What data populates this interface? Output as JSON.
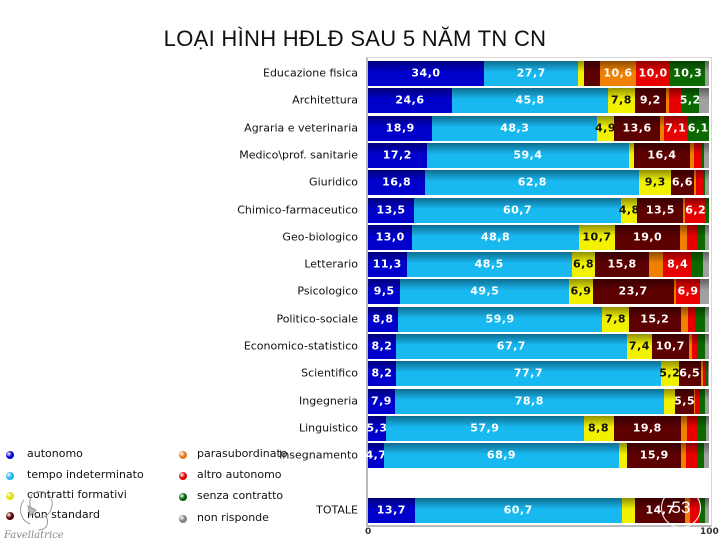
{
  "title": "LOẠI HÌNH HĐLĐ SAU 5 NĂM TN CN",
  "page_number": "53",
  "logo_text": "Favellatrice",
  "chart_data": {
    "type": "bar",
    "orientation": "horizontal",
    "stacked": true,
    "title": "",
    "xlim": [
      0,
      100
    ],
    "x_ticks": [
      "0",
      "100"
    ],
    "grid": false,
    "legend_position": "bottom-left",
    "categories": [
      "Educazione fisica",
      "Architettura",
      "Agraria e veterinaria",
      "Medico\\prof. sanitarie",
      "Giuridico",
      "Chimico-farmaceutico",
      "Geo-biologico",
      "Letterario",
      "Psicologico",
      "Politico-sociale",
      "Economico-statistico",
      "Scientifico",
      "Ingegneria",
      "Linguistico",
      "Insegnamento",
      "TOTALE"
    ],
    "series": [
      {
        "name": "autonomo",
        "color": "#0000cc",
        "values": [
          34.0,
          24.6,
          18.9,
          17.2,
          16.8,
          13.5,
          13.0,
          11.3,
          9.5,
          8.8,
          8.2,
          8.2,
          7.9,
          5.3,
          4.7,
          13.7
        ]
      },
      {
        "name": "tempo indeterminato",
        "color": "#18b8f0",
        "values": [
          27.7,
          45.8,
          48.3,
          59.4,
          62.8,
          60.7,
          48.8,
          48.5,
          49.5,
          59.9,
          67.7,
          77.7,
          78.8,
          57.9,
          68.9,
          60.7
        ]
      },
      {
        "name": "contratti formativi",
        "color": "#f2f200",
        "values": [
          1.7,
          7.8,
          4.9,
          1.4,
          9.3,
          4.8,
          10.7,
          6.8,
          6.9,
          7.8,
          7.4,
          5.2,
          3.4,
          8.8,
          2.4,
          3.9
        ]
      },
      {
        "name": "non standard",
        "color": "#5c0000",
        "values": [
          4.6,
          9.2,
          13.6,
          16.4,
          6.6,
          13.5,
          19.0,
          15.8,
          23.7,
          15.2,
          10.7,
          6.5,
          5.5,
          19.8,
          15.9,
          14.7
        ]
      },
      {
        "name": "parasubordinato",
        "color": "#f08000",
        "values": [
          10.6,
          0.8,
          1.0,
          1.2,
          0.6,
          0.5,
          2.0,
          4.2,
          0.8,
          2.0,
          1.0,
          0.6,
          0.3,
          1.8,
          1.5,
          1.5
        ]
      },
      {
        "name": "altro autonomo",
        "color": "#e80000",
        "values": [
          10.0,
          3.7,
          7.1,
          2.2,
          2.0,
          6.2,
          3.1,
          8.4,
          6.9,
          2.2,
          1.5,
          1.0,
          1.5,
          3.0,
          3.2,
          2.8
        ]
      },
      {
        "name": "senza contratto",
        "color": "#0a6a00",
        "values": [
          10.3,
          5.2,
          6.1,
          0.7,
          0.6,
          0.8,
          2.1,
          3.2,
          0.0,
          3.0,
          2.3,
          0.6,
          1.4,
          2.5,
          2.0,
          1.5
        ]
      },
      {
        "name": "non risponde",
        "color": "#a0a0a0",
        "values": [
          1.1,
          2.9,
          0.1,
          1.5,
          1.3,
          0.0,
          1.3,
          1.8,
          2.7,
          1.1,
          1.2,
          0.2,
          1.2,
          0.9,
          1.4,
          1.2
        ]
      }
    ],
    "label_threshold": 4.7
  },
  "legend": [
    {
      "label": "autonomo",
      "color": "#0000cc"
    },
    {
      "label": "tempo indeterminato",
      "color": "#18b8f0"
    },
    {
      "label": "contratti formativi",
      "color": "#e0e000"
    },
    {
      "label": "non standard",
      "color": "#5c0000"
    },
    {
      "label": "parasubordinato",
      "color": "#e07820"
    },
    {
      "label": "altro autonomo",
      "color": "#e00000"
    },
    {
      "label": "senza contratto",
      "color": "#006000"
    },
    {
      "label": "non risponde",
      "color": "#808080"
    }
  ]
}
